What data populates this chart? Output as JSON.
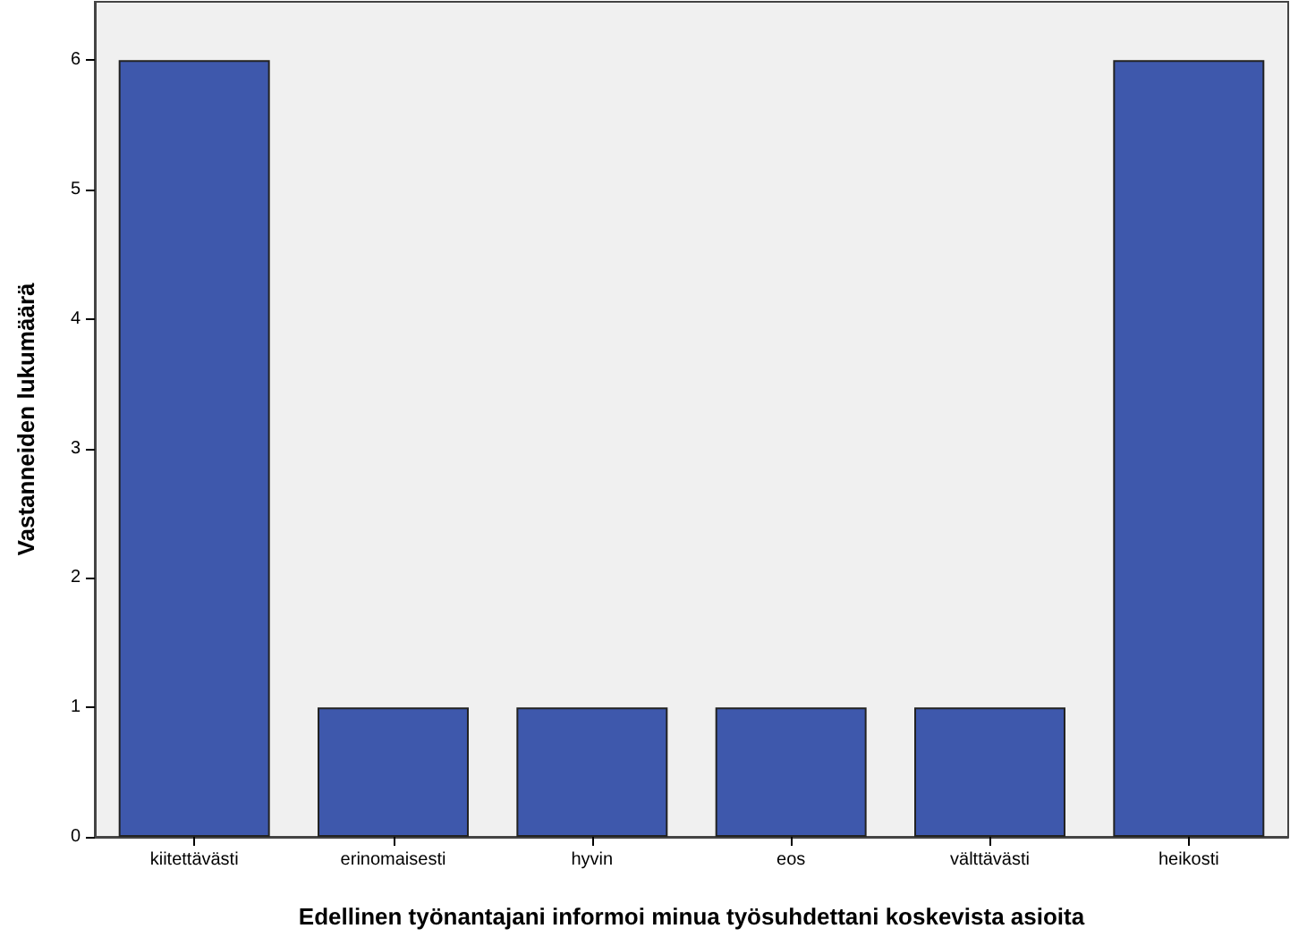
{
  "chart_data": {
    "type": "bar",
    "xlabel": "Edellinen työnantajani informoi minua työsuhdettani koskevista asioita",
    "ylabel": "Vastanneiden lukumäärä",
    "categories": [
      "kiitettävästi",
      "erinomaisesti",
      "hyvin",
      "eos",
      "välttävästi",
      "heikosti"
    ],
    "values": [
      6,
      1,
      1,
      1,
      1,
      6
    ],
    "color": "#3e58ac",
    "ylim": [
      0,
      6.45
    ],
    "yticks": [
      0,
      1,
      2,
      3,
      4,
      5,
      6
    ],
    "grid": false
  }
}
